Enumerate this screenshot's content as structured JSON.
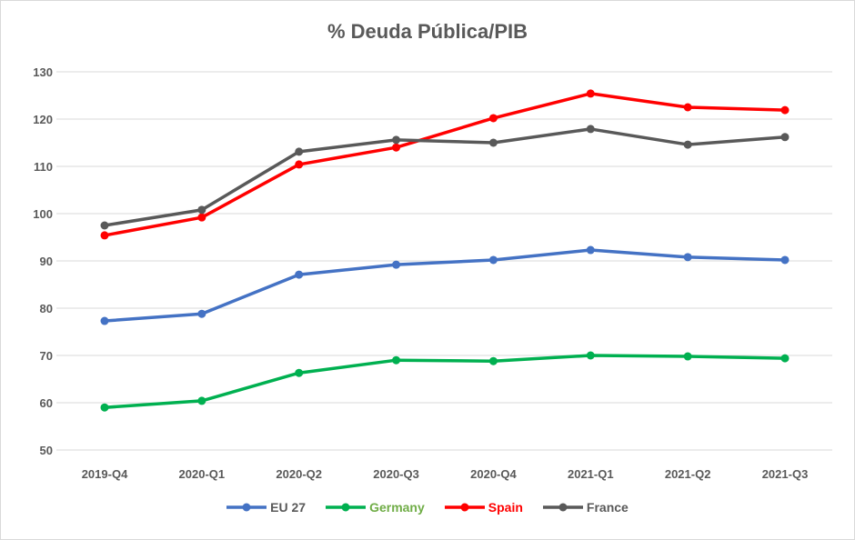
{
  "chart_data": {
    "type": "line",
    "title": "% Deuda Pública/PIB",
    "categories": [
      "2019-Q4",
      "2020-Q1",
      "2020-Q2",
      "2020-Q3",
      "2020-Q4",
      "2021-Q1",
      "2021-Q2",
      "2021-Q3"
    ],
    "ylim": [
      50,
      130
    ],
    "yticks": [
      50,
      60,
      70,
      80,
      90,
      100,
      110,
      120,
      130
    ],
    "grid": true,
    "legend": "bottom",
    "series": [
      {
        "name": "EU 27",
        "color": "#4472c4",
        "label_color": "#595959",
        "values": [
          77.3,
          78.8,
          87.1,
          89.2,
          90.2,
          92.3,
          90.8,
          90.2
        ]
      },
      {
        "name": "Germany",
        "color": "#00b050",
        "label_color": "#70ad47",
        "values": [
          59.0,
          60.4,
          66.3,
          69.0,
          68.8,
          70.0,
          69.8,
          69.4
        ]
      },
      {
        "name": "Spain",
        "color": "#ff0000",
        "label_color": "#ff0000",
        "values": [
          95.4,
          99.2,
          110.4,
          114.0,
          120.2,
          125.4,
          122.5,
          121.9
        ]
      },
      {
        "name": "France",
        "color": "#595959",
        "label_color": "#595959",
        "values": [
          97.5,
          100.8,
          113.1,
          115.6,
          115.0,
          117.9,
          114.6,
          116.2
        ]
      }
    ]
  }
}
